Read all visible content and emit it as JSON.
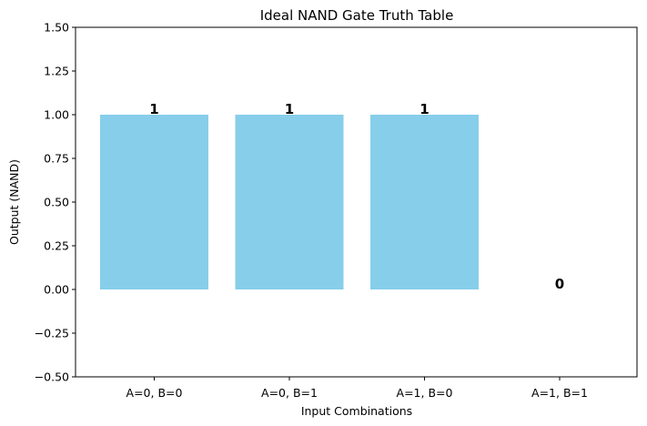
{
  "chart_data": {
    "type": "bar",
    "title": "Ideal NAND Gate Truth Table",
    "xlabel": "Input Combinations",
    "ylabel": "Output (NAND)",
    "categories": [
      "A=0, B=0",
      "A=0, B=1",
      "A=1, B=0",
      "A=1, B=1"
    ],
    "values": [
      1,
      1,
      1,
      0
    ],
    "data_labels": [
      "1",
      "1",
      "1",
      "0"
    ],
    "ylim": [
      -0.5,
      1.5
    ],
    "yticks": [
      -0.5,
      -0.25,
      0,
      0.25,
      0.5,
      0.75,
      1,
      1.25,
      1.5
    ],
    "ytick_labels": [
      "−0.50",
      "−0.25",
      "0.00",
      "0.25",
      "0.50",
      "0.75",
      "1.00",
      "1.25",
      "1.50"
    ],
    "bar_color": "#87ceeb",
    "grid": false,
    "legend": "none"
  }
}
